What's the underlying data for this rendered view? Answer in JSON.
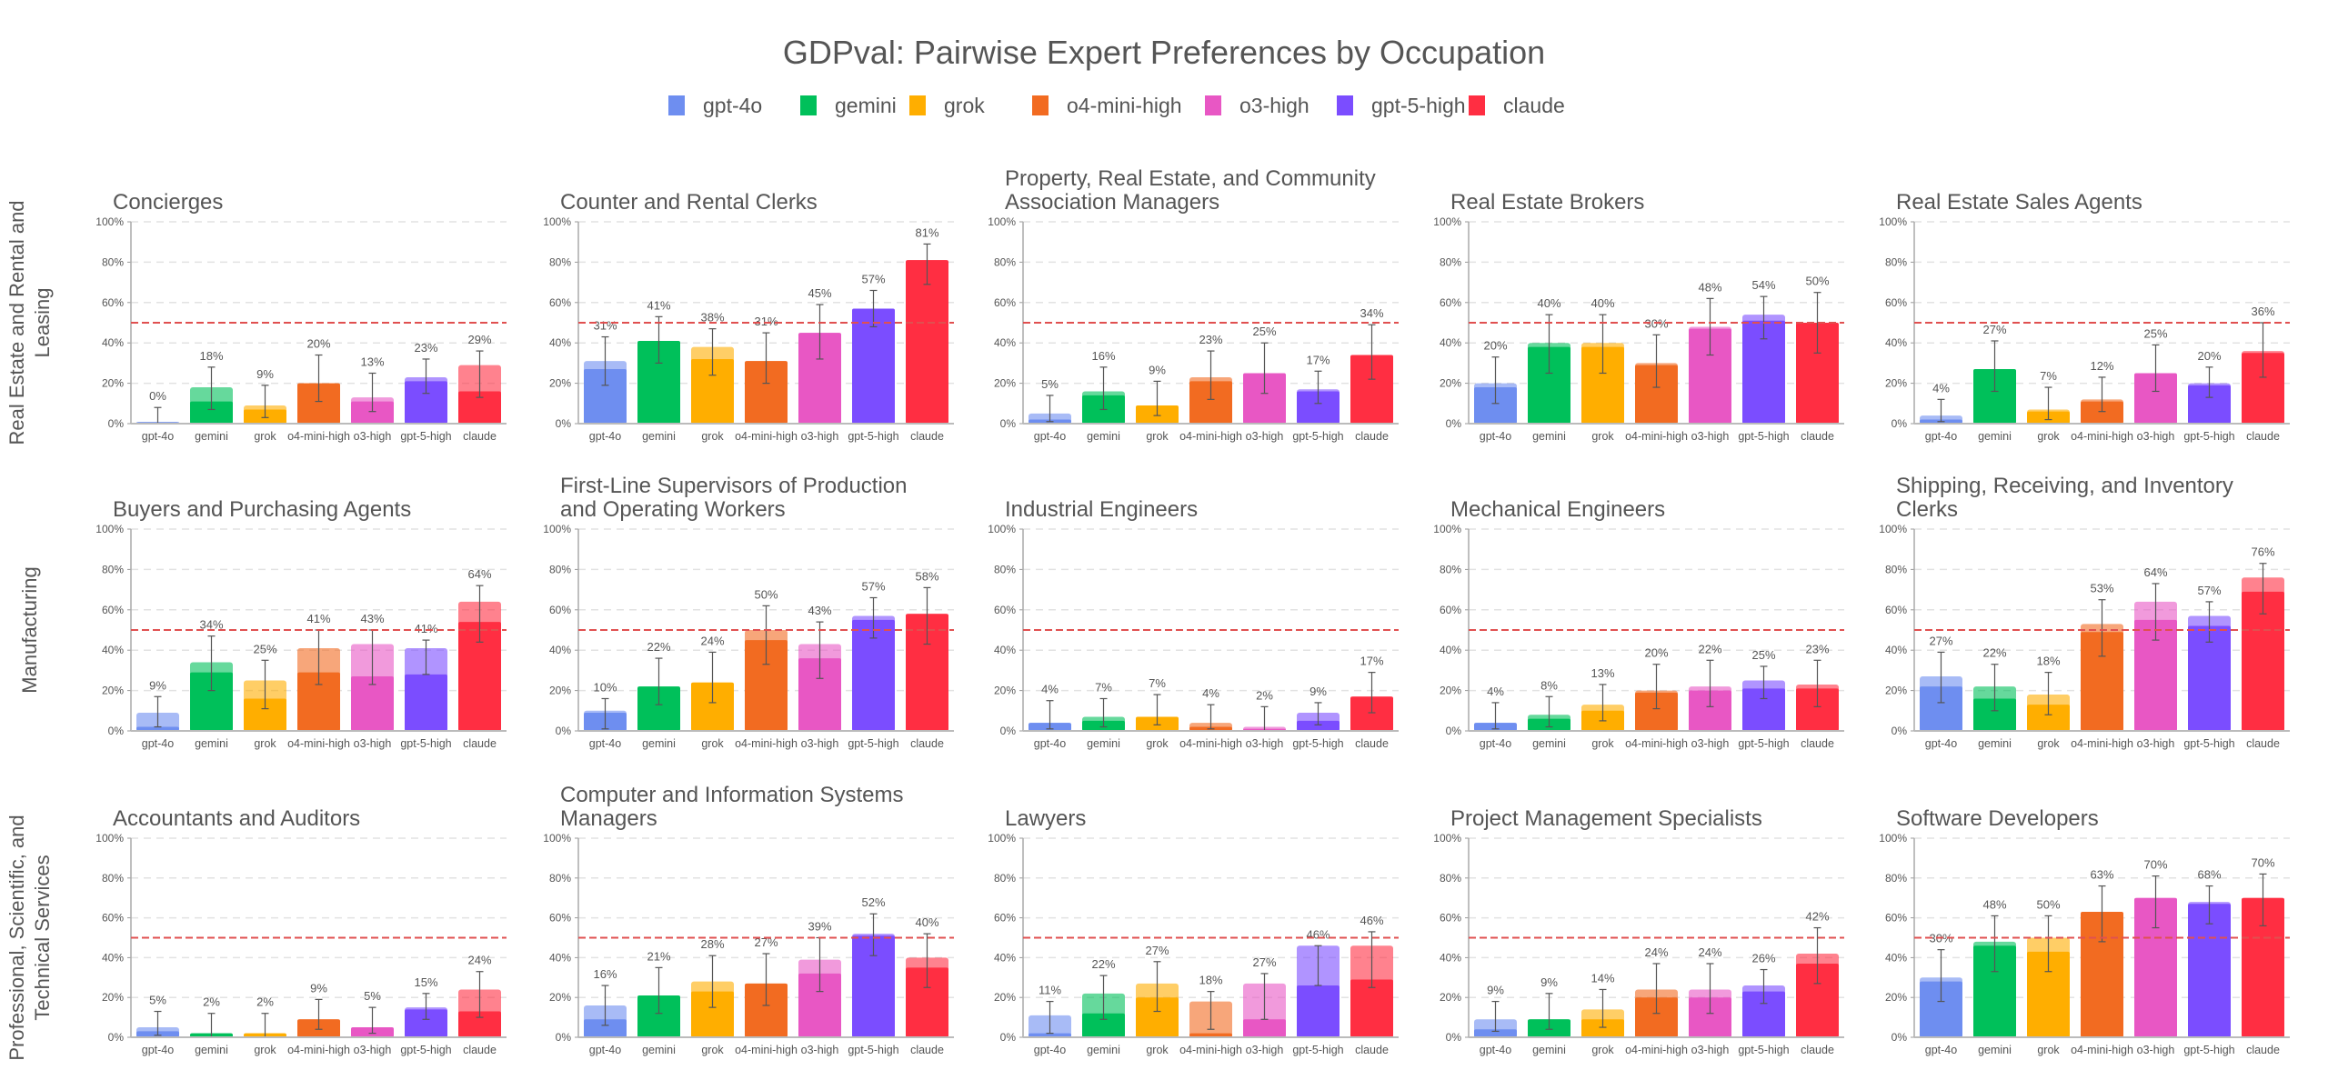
{
  "chart_data": {
    "type": "bar",
    "title": "GDPval: Pairwise Expert Preferences by Occupation",
    "categories": [
      "gpt-4o",
      "gemini",
      "grok",
      "o4-mini-high",
      "o3-high",
      "gpt-5-high",
      "claude"
    ],
    "colors": [
      "#6E8EF0",
      "#00C05A",
      "#FFAE00",
      "#F26B21",
      "#E857C4",
      "#7B4DFF",
      "#FF2E42"
    ],
    "legend": {
      "placement": "top-center",
      "entries": [
        "gpt-4o",
        "gemini",
        "grok",
        "o4-mini-high",
        "o3-high",
        "gpt-5-high",
        "claude"
      ]
    },
    "ylim": [
      0,
      100
    ],
    "yticks": [
      "0%",
      "20%",
      "40%",
      "60%",
      "80%",
      "100%"
    ],
    "grid": true,
    "reference_line": 50,
    "rows": [
      {
        "label_lines": [
          "Real Estate and Rental and",
          "Leasing"
        ],
        "panels": [
          {
            "title_lines": [
              "Concierges"
            ],
            "values": [
              0,
              18,
              9,
              20,
              13,
              23,
              29
            ],
            "wins": [
              1,
              11,
              7,
              20,
              11,
              21,
              16
            ],
            "ci": [
              [
                0,
                8
              ],
              [
                7,
                28
              ],
              [
                3,
                19
              ],
              [
                11,
                34
              ],
              [
                6,
                25
              ],
              [
                15,
                32
              ],
              [
                13,
                36
              ]
            ]
          },
          {
            "title_lines": [
              "Counter and Rental Clerks"
            ],
            "values": [
              31,
              41,
              38,
              31,
              45,
              57,
              81
            ],
            "wins": [
              27,
              41,
              32,
              31,
              45,
              57,
              81
            ],
            "ci": [
              [
                19,
                43
              ],
              [
                30,
                53
              ],
              [
                24,
                47
              ],
              [
                20,
                45
              ],
              [
                32,
                59
              ],
              [
                48,
                66
              ],
              [
                69,
                89
              ]
            ]
          },
          {
            "title_lines": [
              "Property, Real Estate, and Community",
              "Association Managers"
            ],
            "values": [
              5,
              16,
              9,
              23,
              25,
              17,
              34
            ],
            "wins": [
              2,
              14,
              9,
              21,
              25,
              16,
              34
            ],
            "ci": [
              [
                1,
                14
              ],
              [
                7,
                28
              ],
              [
                4,
                21
              ],
              [
                12,
                36
              ],
              [
                15,
                40
              ],
              [
                10,
                26
              ],
              [
                22,
                49
              ]
            ]
          },
          {
            "title_lines": [
              "Real Estate Brokers"
            ],
            "values": [
              20,
              40,
              40,
              30,
              48,
              54,
              50
            ],
            "wins": [
              18,
              38,
              38,
              29,
              47,
              51,
              50
            ],
            "ci": [
              [
                10,
                33
              ],
              [
                25,
                54
              ],
              [
                25,
                54
              ],
              [
                18,
                44
              ],
              [
                34,
                62
              ],
              [
                42,
                63
              ],
              [
                35,
                65
              ]
            ]
          },
          {
            "title_lines": [
              "Real Estate Sales Agents"
            ],
            "values": [
              4,
              27,
              7,
              12,
              25,
              20,
              36
            ],
            "wins": [
              2,
              27,
              6,
              11,
              25,
              19,
              35
            ],
            "ci": [
              [
                1,
                12
              ],
              [
                16,
                41
              ],
              [
                2,
                18
              ],
              [
                6,
                23
              ],
              [
                16,
                39
              ],
              [
                13,
                28
              ],
              [
                23,
                50
              ]
            ]
          }
        ]
      },
      {
        "label_lines": [
          "Manufacturing"
        ],
        "panels": [
          {
            "title_lines": [
              "Buyers and Purchasing Agents"
            ],
            "values": [
              9,
              34,
              25,
              41,
              43,
              41,
              64
            ],
            "wins": [
              2,
              29,
              16,
              29,
              27,
              28,
              54
            ],
            "ci": [
              [
                2,
                17
              ],
              [
                20,
                47
              ],
              [
                11,
                35
              ],
              [
                23,
                50
              ],
              [
                23,
                50
              ],
              [
                28,
                45
              ],
              [
                44,
                72
              ]
            ]
          },
          {
            "title_lines": [
              "First-Line Supervisors of Production",
              "and Operating Workers"
            ],
            "values": [
              10,
              22,
              24,
              50,
              43,
              57,
              58
            ],
            "wins": [
              9,
              22,
              24,
              45,
              36,
              55,
              58
            ],
            "ci": [
              [
                1,
                16
              ],
              [
                13,
                36
              ],
              [
                14,
                39
              ],
              [
                33,
                62
              ],
              [
                26,
                54
              ],
              [
                46,
                66
              ],
              [
                43,
                71
              ]
            ]
          },
          {
            "title_lines": [
              "Industrial Engineers"
            ],
            "values": [
              4,
              7,
              7,
              4,
              2,
              9,
              17
            ],
            "wins": [
              4,
              5,
              7,
              2,
              1,
              5,
              17
            ],
            "ci": [
              [
                1,
                15
              ],
              [
                2,
                16
              ],
              [
                3,
                18
              ],
              [
                1,
                13
              ],
              [
                0,
                12
              ],
              [
                3,
                14
              ],
              [
                9,
                29
              ]
            ]
          },
          {
            "title_lines": [
              "Mechanical Engineers"
            ],
            "values": [
              4,
              8,
              13,
              20,
              22,
              25,
              23
            ],
            "wins": [
              4,
              6,
              10,
              19,
              20,
              21,
              21
            ],
            "ci": [
              [
                1,
                14
              ],
              [
                2,
                17
              ],
              [
                5,
                23
              ],
              [
                11,
                33
              ],
              [
                12,
                35
              ],
              [
                16,
                32
              ],
              [
                12,
                35
              ]
            ]
          },
          {
            "title_lines": [
              "Shipping, Receiving, and Inventory",
              "Clerks"
            ],
            "values": [
              27,
              22,
              18,
              53,
              64,
              57,
              76
            ],
            "wins": [
              22,
              16,
              13,
              49,
              55,
              52,
              69
            ],
            "ci": [
              [
                14,
                39
              ],
              [
                10,
                33
              ],
              [
                8,
                29
              ],
              [
                37,
                65
              ],
              [
                45,
                73
              ],
              [
                44,
                64
              ],
              [
                58,
                83
              ]
            ]
          }
        ]
      },
      {
        "label_lines": [
          "Professional, Scientific, and",
          "Technical Services"
        ],
        "panels": [
          {
            "title_lines": [
              "Accountants and Auditors"
            ],
            "values": [
              5,
              2,
              2,
              9,
              5,
              15,
              24
            ],
            "wins": [
              3,
              2,
              2,
              9,
              5,
              14,
              13
            ],
            "ci": [
              [
                1,
                13
              ],
              [
                0,
                12
              ],
              [
                0,
                12
              ],
              [
                4,
                19
              ],
              [
                2,
                15
              ],
              [
                9,
                22
              ],
              [
                10,
                33
              ]
            ]
          },
          {
            "title_lines": [
              "Computer and Information Systems",
              "Managers"
            ],
            "values": [
              16,
              21,
              28,
              27,
              39,
              52,
              40
            ],
            "wins": [
              9,
              21,
              23,
              27,
              32,
              51,
              35
            ],
            "ci": [
              [
                6,
                26
              ],
              [
                12,
                35
              ],
              [
                15,
                41
              ],
              [
                16,
                42
              ],
              [
                23,
                50
              ],
              [
                41,
                62
              ],
              [
                25,
                52
              ]
            ]
          },
          {
            "title_lines": [
              "Lawyers"
            ],
            "values": [
              11,
              22,
              27,
              18,
              27,
              46,
              46
            ],
            "wins": [
              2,
              12,
              20,
              2,
              9,
              26,
              29
            ],
            "ci": [
              [
                2,
                18
              ],
              [
                9,
                31
              ],
              [
                13,
                38
              ],
              [
                4,
                23
              ],
              [
                9,
                32
              ],
              [
                26,
                46
              ],
              [
                25,
                53
              ]
            ]
          },
          {
            "title_lines": [
              "Project Management Specialists"
            ],
            "values": [
              9,
              9,
              14,
              24,
              24,
              26,
              42
            ],
            "wins": [
              4,
              9,
              9,
              20,
              20,
              23,
              37
            ],
            "ci": [
              [
                3,
                18
              ],
              [
                4,
                22
              ],
              [
                5,
                24
              ],
              [
                12,
                37
              ],
              [
                12,
                37
              ],
              [
                17,
                34
              ],
              [
                27,
                55
              ]
            ]
          },
          {
            "title_lines": [
              "Software Developers"
            ],
            "values": [
              30,
              48,
              50,
              63,
              70,
              68,
              70
            ],
            "wins": [
              28,
              46,
              43,
              63,
              70,
              67,
              70
            ],
            "ci": [
              [
                18,
                44
              ],
              [
                33,
                61
              ],
              [
                33,
                61
              ],
              [
                48,
                76
              ],
              [
                55,
                81
              ],
              [
                57,
                76
              ],
              [
                56,
                82
              ]
            ]
          }
        ]
      }
    ]
  }
}
